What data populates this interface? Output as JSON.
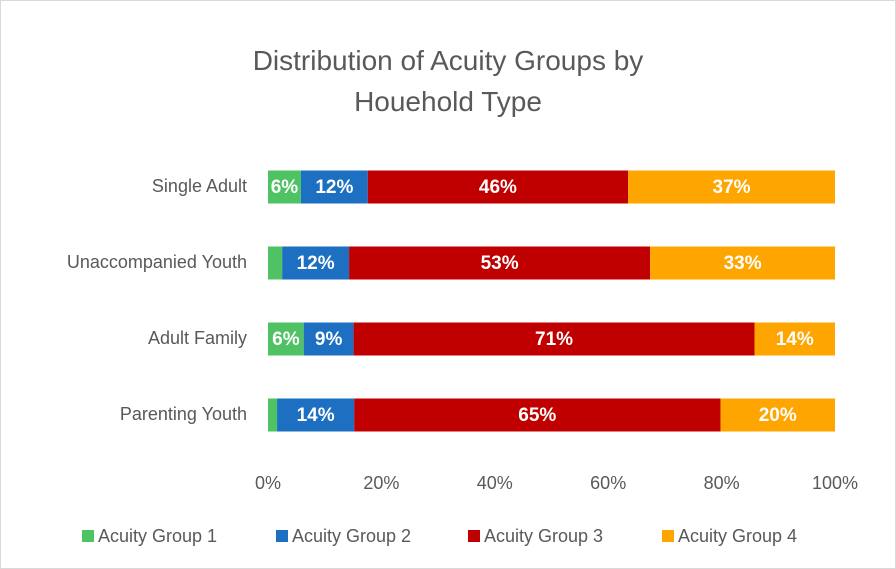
{
  "chart_data": {
    "type": "stacked-bar-horizontal",
    "title": "Distribution of Acuity Groups by Houehold Type",
    "categories": [
      "Single Adult",
      "Unaccompanied Youth",
      "Adult Family",
      "Parenting Youth"
    ],
    "series": [
      {
        "name": "Acuity Group 1",
        "color": "#4fc263",
        "values": [
          5.8,
          2.5,
          6.3,
          1.6
        ],
        "value_labels": [
          "6%",
          null,
          "6%",
          null
        ]
      },
      {
        "name": "Acuity Group 2",
        "color": "#1c6fc1",
        "values": [
          11.8,
          11.8,
          8.8,
          13.6
        ],
        "value_labels": [
          "12%",
          "12%",
          "9%",
          "14%"
        ]
      },
      {
        "name": "Acuity Group 3",
        "color": "#c00000",
        "values": [
          45.9,
          53.1,
          70.7,
          64.6
        ],
        "value_labels": [
          "46%",
          "53%",
          "71%",
          "65%"
        ]
      },
      {
        "name": "Acuity Group 4",
        "color": "#ffa500",
        "values": [
          36.5,
          32.6,
          14.2,
          20.2
        ],
        "value_labels": [
          "37%",
          "33%",
          "14%",
          "20%"
        ]
      }
    ],
    "xlim": [
      0,
      100
    ],
    "xticks": [
      {
        "value": 0,
        "label": "0%"
      },
      {
        "value": 20,
        "label": "20%"
      },
      {
        "value": 40,
        "label": "40%"
      },
      {
        "value": 60,
        "label": "60%"
      },
      {
        "value": 80,
        "label": "80%"
      },
      {
        "value": 100,
        "label": "100%"
      }
    ],
    "grid": false,
    "legend": "bottom"
  }
}
